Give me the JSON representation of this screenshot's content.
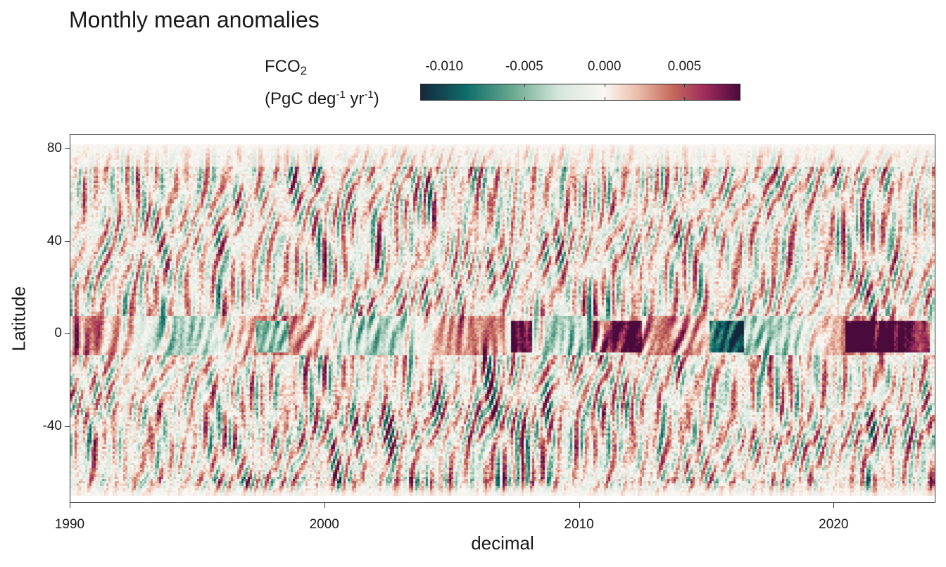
{
  "chart_data": {
    "type": "heatmap",
    "title": "Monthly mean anomalies",
    "xlabel": "decimal",
    "ylabel": "Latitude",
    "xlim": [
      1990,
      2024
    ],
    "ylim": [
      -73,
      86
    ],
    "x_ticks": [
      "1990",
      "2000",
      "2010",
      "2020"
    ],
    "x_tick_values": [
      1990,
      2000,
      2010,
      2020
    ],
    "y_ticks": [
      "80",
      "40",
      "0",
      "-40"
    ],
    "y_tick_values": [
      80,
      40,
      0,
      -40
    ],
    "legend": {
      "title_main": "FCO",
      "title_sub": "2",
      "units_prefix": "(PgC deg",
      "units_exp1": "-1",
      "units_mid": " yr",
      "units_exp2": "-1",
      "units_suffix": ")",
      "placement": "top",
      "range": [
        -0.0115,
        0.0085
      ],
      "ticks": [
        "-0.010",
        "-0.005",
        "0.000",
        "0.005"
      ],
      "tick_values": [
        -0.01,
        -0.005,
        0.0,
        0.005
      ],
      "colors": [
        "#14273f",
        "#0e6e6a",
        "#69a88e",
        "#d5e6dc",
        "#faf7f3",
        "#ebbcaa",
        "#c46a5c",
        "#9c2a5c",
        "#4a0b3c"
      ]
    },
    "notable_features": [
      {
        "x_range": [
          1997.3,
          1998.6
        ],
        "lat_range": [
          -8,
          6
        ],
        "sign": "negative"
      },
      {
        "x_range": [
          2015.2,
          2016.5
        ],
        "lat_range": [
          -8,
          6
        ],
        "sign": "negative"
      },
      {
        "x_range": [
          2007.3,
          2008.2
        ],
        "lat_range": [
          -8,
          6
        ],
        "sign": "positive"
      },
      {
        "x_range": [
          2010.5,
          2012.5
        ],
        "lat_range": [
          -8,
          6
        ],
        "sign": "positive"
      },
      {
        "x_range": [
          2020.5,
          2023.8
        ],
        "lat_range": [
          -8,
          6
        ],
        "sign": "positive"
      }
    ]
  }
}
